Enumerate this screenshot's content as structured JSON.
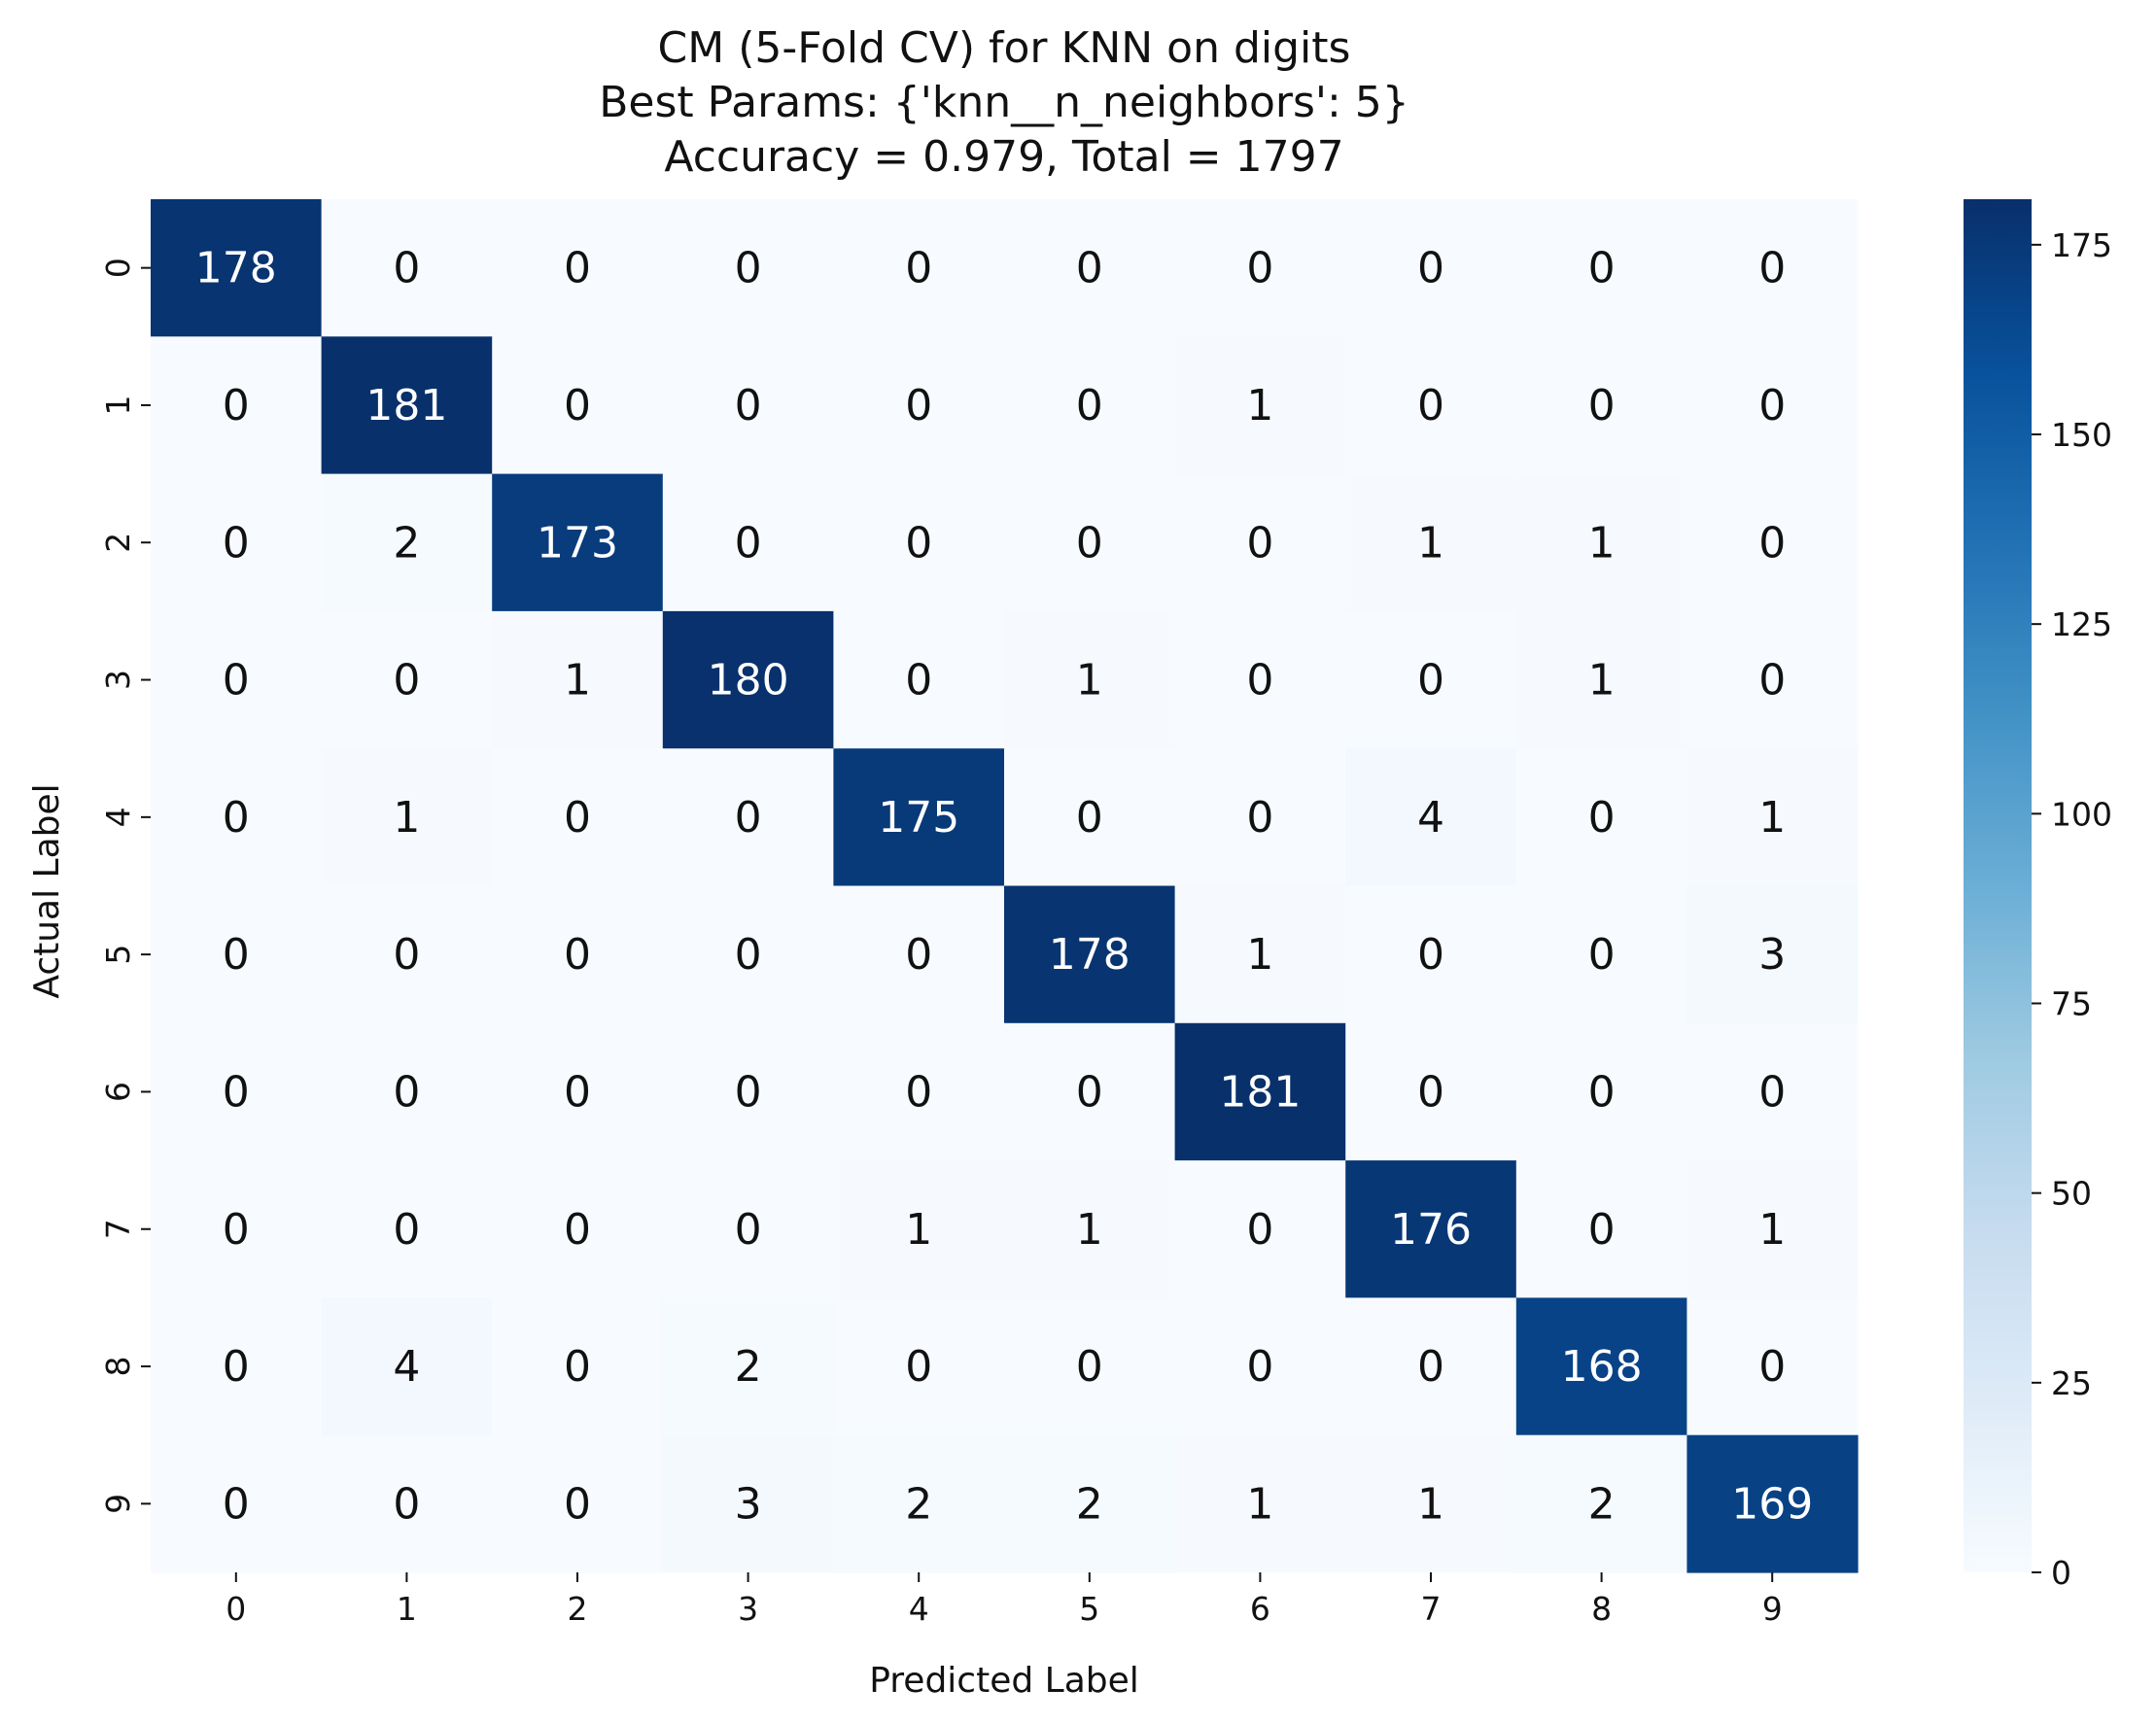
{
  "chart_data": {
    "type": "heatmap",
    "title": [
      "CM (5-Fold CV) for KNN on digits",
      "Best Params: {'knn__n_neighbors': 5}",
      "Accuracy = 0.979, Total = 1797"
    ],
    "xlabel": "Predicted Label",
    "ylabel": "Actual Label",
    "x_categories": [
      "0",
      "1",
      "2",
      "3",
      "4",
      "5",
      "6",
      "7",
      "8",
      "9"
    ],
    "y_categories": [
      "0",
      "1",
      "2",
      "3",
      "4",
      "5",
      "6",
      "7",
      "8",
      "9"
    ],
    "values": [
      [
        178,
        0,
        0,
        0,
        0,
        0,
        0,
        0,
        0,
        0
      ],
      [
        0,
        181,
        0,
        0,
        0,
        0,
        1,
        0,
        0,
        0
      ],
      [
        0,
        2,
        173,
        0,
        0,
        0,
        0,
        1,
        1,
        0
      ],
      [
        0,
        0,
        1,
        180,
        0,
        1,
        0,
        0,
        1,
        0
      ],
      [
        0,
        1,
        0,
        0,
        175,
        0,
        0,
        4,
        0,
        1
      ],
      [
        0,
        0,
        0,
        0,
        0,
        178,
        1,
        0,
        0,
        3
      ],
      [
        0,
        0,
        0,
        0,
        0,
        0,
        181,
        0,
        0,
        0
      ],
      [
        0,
        0,
        0,
        0,
        1,
        1,
        0,
        176,
        0,
        1
      ],
      [
        0,
        4,
        0,
        2,
        0,
        0,
        0,
        0,
        168,
        0
      ],
      [
        0,
        0,
        0,
        3,
        2,
        2,
        1,
        1,
        2,
        169
      ]
    ],
    "colormap": "Blues",
    "vmin": 0,
    "vmax": 181,
    "colorbar_ticks": [
      0,
      25,
      50,
      75,
      100,
      125,
      150,
      175
    ],
    "grid": false,
    "legend": "colorbar-right"
  }
}
